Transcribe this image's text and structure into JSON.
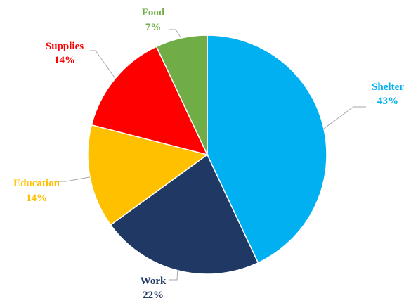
{
  "chart_data": {
    "type": "pie",
    "title": "",
    "legend": "none",
    "slices": [
      {
        "name": "Shelter",
        "value": 43,
        "label": "43%",
        "color": "#00B0F0"
      },
      {
        "name": "Work",
        "value": 22,
        "label": "22%",
        "color": "#1F3864"
      },
      {
        "name": "Education",
        "value": 14,
        "label": "14%",
        "color": "#FFC000"
      },
      {
        "name": "Supplies",
        "value": 14,
        "label": "14%",
        "color": "#FF0000"
      },
      {
        "name": "Food",
        "value": 7,
        "label": "7%",
        "color": "#70AD47"
      }
    ]
  }
}
